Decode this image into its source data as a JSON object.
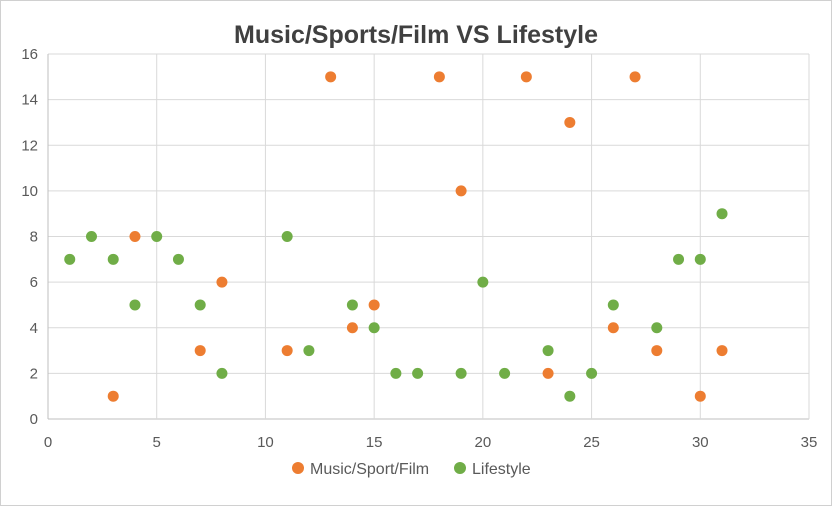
{
  "chart_data": {
    "type": "scatter",
    "title": "Music/Sports/Film VS Lifestyle",
    "xlabel": "",
    "ylabel": "",
    "xlim": [
      0,
      35
    ],
    "ylim": [
      0,
      16
    ],
    "xticks": [
      0,
      5,
      10,
      15,
      20,
      25,
      30,
      35
    ],
    "yticks": [
      0,
      2,
      4,
      6,
      8,
      10,
      12,
      14,
      16
    ],
    "grid": true,
    "legend_position": "bottom",
    "series": [
      {
        "name": "Music/Sport/Film",
        "color": "#ED7D31",
        "points": [
          [
            13,
            15
          ],
          [
            18,
            15
          ],
          [
            22,
            15
          ],
          [
            27,
            15
          ],
          [
            24,
            13
          ],
          [
            19,
            10
          ],
          [
            4,
            8
          ],
          [
            8,
            6
          ],
          [
            15,
            5
          ],
          [
            14,
            4
          ],
          [
            26,
            4
          ],
          [
            7,
            3
          ],
          [
            11,
            3
          ],
          [
            28,
            3
          ],
          [
            31,
            3
          ],
          [
            23,
            2
          ],
          [
            3,
            1
          ],
          [
            30,
            1
          ]
        ]
      },
      {
        "name": "Lifestyle",
        "color": "#70AD47",
        "points": [
          [
            1,
            7
          ],
          [
            2,
            8
          ],
          [
            3,
            7
          ],
          [
            4,
            5
          ],
          [
            5,
            8
          ],
          [
            6,
            7
          ],
          [
            7,
            5
          ],
          [
            8,
            2
          ],
          [
            11,
            8
          ],
          [
            12,
            3
          ],
          [
            14,
            5
          ],
          [
            15,
            4
          ],
          [
            16,
            2
          ],
          [
            17,
            2
          ],
          [
            19,
            2
          ],
          [
            20,
            6
          ],
          [
            21,
            2
          ],
          [
            23,
            3
          ],
          [
            24,
            1
          ],
          [
            25,
            2
          ],
          [
            26,
            5
          ],
          [
            28,
            4
          ],
          [
            29,
            7
          ],
          [
            30,
            7
          ],
          [
            31,
            9
          ]
        ]
      }
    ]
  }
}
